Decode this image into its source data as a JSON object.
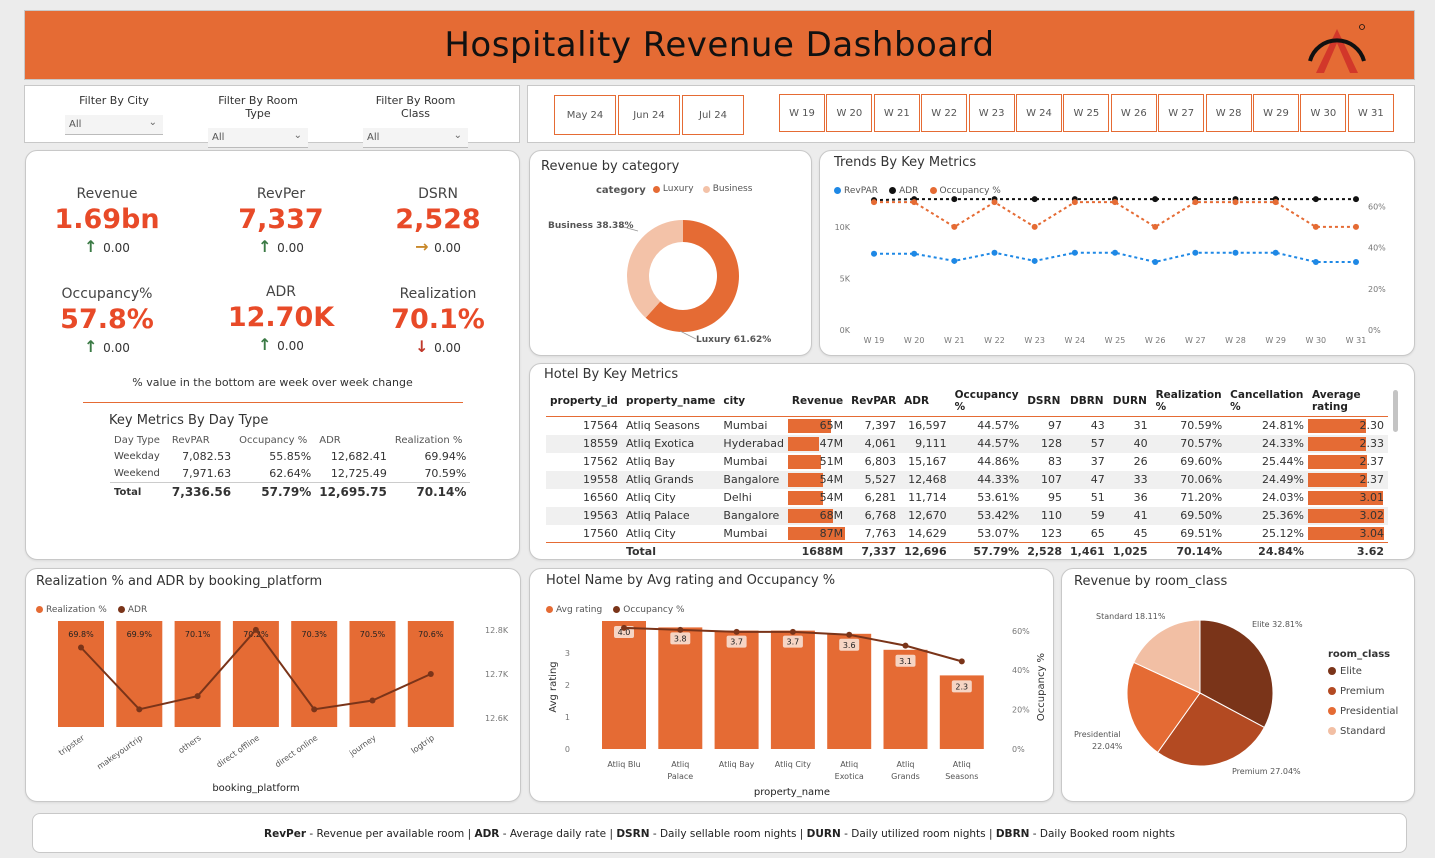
{
  "header": {
    "title": "Hospitality Revenue Dashboard"
  },
  "filters": [
    {
      "label": "Filter By City",
      "value": "All"
    },
    {
      "label": "Filter By Room Type",
      "value": "All"
    },
    {
      "label": "Filter By Room Class",
      "value": "All"
    }
  ],
  "months": [
    "May 24",
    "Jun 24",
    "Jul 24"
  ],
  "weeks": [
    "W 19",
    "W 20",
    "W 21",
    "W 22",
    "W 23",
    "W 24",
    "W 25",
    "W 26",
    "W 27",
    "W 28",
    "W 29",
    "W 30",
    "W 31"
  ],
  "kpis": [
    {
      "label": "Revenue",
      "value": "1.69bn",
      "change": "0.00",
      "dir": "up"
    },
    {
      "label": "RevPer",
      "value": "7,337",
      "change": "0.00",
      "dir": "up"
    },
    {
      "label": "DSRN",
      "value": "2,528",
      "change": "0.00",
      "dir": "right"
    },
    {
      "label": "Occupancy%",
      "value": "57.8%",
      "change": "0.00",
      "dir": "up"
    },
    {
      "label": "ADR",
      "value": "12.70K",
      "change": "0.00",
      "dir": "up"
    },
    {
      "label": "Realization",
      "value": "70.1%",
      "change": "0.00",
      "dir": "down"
    }
  ],
  "kpi_note": "% value in the bottom are week over week change",
  "day_type": {
    "title": "Key Metrics By Day Type",
    "columns": [
      "Day Type",
      "RevPAR",
      "Occupancy %",
      "ADR",
      "Realization %"
    ],
    "rows": [
      [
        "Weekday",
        "7,082.53",
        "55.85%",
        "12,682.41",
        "69.94%"
      ],
      [
        "Weekend",
        "7,971.63",
        "62.64%",
        "12,725.49",
        "70.59%"
      ]
    ],
    "total": [
      "Total",
      "7,336.56",
      "57.79%",
      "12,695.75",
      "70.14%"
    ]
  },
  "revenue_by_category": {
    "title": "Revenue by category",
    "legend_title": "category",
    "labels": {
      "business": "Business 38.38%",
      "luxury": "Luxury 61.62%"
    }
  },
  "trends": {
    "title": "Trends By Key Metrics",
    "left_ticks": [
      "10K",
      "5K",
      "0K"
    ],
    "right_ticks": [
      "60%",
      "40%",
      "20%",
      "0%"
    ]
  },
  "hotel_metrics": {
    "title": "Hotel By Key Metrics",
    "columns": [
      "property_id",
      "property_name",
      "city",
      "Revenue",
      "RevPAR",
      "ADR",
      "Occupancy %",
      "DSRN",
      "DBRN",
      "DURN",
      "Realization %",
      "Cancellation %",
      "Average rating"
    ],
    "rows": [
      {
        "id": "17564",
        "name": "Atliq Seasons",
        "city": "Mumbai",
        "revenue": "65M",
        "revenue_val": 65,
        "revpar": "7,397",
        "adr": "16,597",
        "occ": "44.57%",
        "dsrn": "97",
        "dbrn": "43",
        "durn": "31",
        "real": "70.59%",
        "canc": "24.81%",
        "rating": "2.30",
        "rating_val": 2.3
      },
      {
        "id": "18559",
        "name": "Atliq Exotica",
        "city": "Hyderabad",
        "revenue": "47M",
        "revenue_val": 47,
        "revpar": "4,061",
        "adr": "9,111",
        "occ": "44.57%",
        "dsrn": "128",
        "dbrn": "57",
        "durn": "40",
        "real": "70.57%",
        "canc": "24.33%",
        "rating": "2.33",
        "rating_val": 2.33
      },
      {
        "id": "17562",
        "name": "Atliq Bay",
        "city": "Mumbai",
        "revenue": "51M",
        "revenue_val": 51,
        "revpar": "6,803",
        "adr": "15,167",
        "occ": "44.86%",
        "dsrn": "83",
        "dbrn": "37",
        "durn": "26",
        "real": "69.60%",
        "canc": "25.44%",
        "rating": "2.37",
        "rating_val": 2.37
      },
      {
        "id": "19558",
        "name": "Atliq Grands",
        "city": "Bangalore",
        "revenue": "54M",
        "revenue_val": 54,
        "revpar": "5,527",
        "adr": "12,468",
        "occ": "44.33%",
        "dsrn": "107",
        "dbrn": "47",
        "durn": "33",
        "real": "70.06%",
        "canc": "24.49%",
        "rating": "2.37",
        "rating_val": 2.37
      },
      {
        "id": "16560",
        "name": "Atliq City",
        "city": "Delhi",
        "revenue": "54M",
        "revenue_val": 54,
        "revpar": "6,281",
        "adr": "11,714",
        "occ": "53.61%",
        "dsrn": "95",
        "dbrn": "51",
        "durn": "36",
        "real": "71.20%",
        "canc": "24.03%",
        "rating": "3.01",
        "rating_val": 3.01
      },
      {
        "id": "19563",
        "name": "Atliq Palace",
        "city": "Bangalore",
        "revenue": "68M",
        "revenue_val": 68,
        "revpar": "6,768",
        "adr": "12,670",
        "occ": "53.42%",
        "dsrn": "110",
        "dbrn": "59",
        "durn": "41",
        "real": "69.50%",
        "canc": "25.36%",
        "rating": "3.02",
        "rating_val": 3.02
      },
      {
        "id": "17560",
        "name": "Atliq City",
        "city": "Mumbai",
        "revenue": "87M",
        "revenue_val": 87,
        "revpar": "7,763",
        "adr": "14,629",
        "occ": "53.07%",
        "dsrn": "123",
        "dbrn": "65",
        "durn": "45",
        "real": "69.51%",
        "canc": "25.12%",
        "rating": "3.04",
        "rating_val": 3.04
      }
    ],
    "total": {
      "label": "Total",
      "revenue": "1688M",
      "revpar": "7,337",
      "adr": "12,696",
      "occ": "57.79%",
      "dsrn": "2,528",
      "dbrn": "1,461",
      "durn": "1,025",
      "real": "70.14%",
      "canc": "24.84%",
      "rating": "3.62"
    }
  },
  "realization_platform": {
    "title": "Realization % and ADR by booking_platform",
    "xlabel": "booking_platform",
    "right_ticks": [
      "12.8K",
      "12.7K",
      "12.6K"
    ]
  },
  "hotel_rating": {
    "title": "Hotel Name by Avg rating and Occupancy %",
    "xlabel": "property_name",
    "ylabel": "Avg rating",
    "y2label": "Occupancy %",
    "left_ticks": [
      "3",
      "2",
      "1",
      "0"
    ],
    "right_ticks": [
      "60%",
      "40%",
      "20%",
      "0%"
    ]
  },
  "room_class": {
    "title": "Revenue by room_class",
    "legend_title": "room_class"
  },
  "footer": {
    "parts": [
      {
        "bold": "RevPer",
        "text": " - Revenue per available room | "
      },
      {
        "bold": "ADR",
        "text": " - Average daily rate | "
      },
      {
        "bold": "DSRN",
        "text": " - Daily sellable room nights | "
      },
      {
        "bold": "DURN",
        "text": " - Daily utilized room nights | "
      },
      {
        "bold": "DBRN",
        "text": " - Daily Booked room nights"
      }
    ]
  },
  "colors": {
    "accent": "#e56b34",
    "kpi_red": "#e84a28",
    "luxury": "#e56b34",
    "business": "#f3c2a8",
    "revpar": "#1e88e5",
    "adr": "#111111",
    "elite": "#7a3419",
    "premium": "#b34a22",
    "presidential": "#e56b34",
    "standard": "#f2bfa4"
  },
  "chart_data": [
    {
      "type": "pie",
      "title": "Revenue by category",
      "labels": [
        "Luxury",
        "Business"
      ],
      "values": [
        61.62,
        38.38
      ],
      "legend": "top"
    },
    {
      "type": "line",
      "title": "Trends By Key Metrics",
      "x": [
        "W 19",
        "W 20",
        "W 21",
        "W 22",
        "W 23",
        "W 24",
        "W 25",
        "W 26",
        "W 27",
        "W 28",
        "W 29",
        "W 30",
        "W 31"
      ],
      "series": [
        {
          "name": "RevPAR",
          "axis": "left",
          "values": [
            7400,
            7400,
            6700,
            7500,
            6700,
            7500,
            7500,
            6600,
            7500,
            7500,
            7500,
            6600,
            6600
          ]
        },
        {
          "name": "ADR",
          "axis": "left",
          "values": [
            12600,
            12700,
            12700,
            12700,
            12700,
            12700,
            12700,
            12700,
            12700,
            12700,
            12700,
            12700,
            12700
          ]
        },
        {
          "name": "Occupancy %",
          "axis": "right",
          "values": [
            62,
            62,
            50,
            62,
            50,
            62,
            62,
            50,
            62,
            62,
            62,
            50,
            50
          ]
        }
      ],
      "ylim_left": [
        0,
        13000
      ],
      "ylim_right": [
        0,
        65
      ]
    },
    {
      "type": "bar",
      "title": "Realization % and ADR by booking_platform",
      "categories": [
        "tripster",
        "makeyourtrip",
        "others",
        "direct offline",
        "direct online",
        "journey",
        "logtrip"
      ],
      "series": [
        {
          "name": "Realization %",
          "values": [
            69.8,
            69.9,
            70.1,
            70.2,
            70.3,
            70.5,
            70.6
          ]
        },
        {
          "name": "ADR",
          "axis": "right",
          "values": [
            12760,
            12620,
            12650,
            12800,
            12620,
            12640,
            12700
          ]
        }
      ],
      "ylim_right": [
        12580,
        12820
      ]
    },
    {
      "type": "bar",
      "title": "Hotel Name by Avg rating and Occupancy %",
      "categories": [
        "Atliq Blu",
        "Atliq Palace",
        "Atliq Bay",
        "Atliq City",
        "Atliq Exotica",
        "Atliq Grands",
        "Atliq Seasons"
      ],
      "series": [
        {
          "name": "Avg rating",
          "values": [
            4.0,
            3.8,
            3.7,
            3.7,
            3.6,
            3.1,
            2.3
          ]
        },
        {
          "name": "Occupancy %",
          "axis": "right",
          "values": [
            61.5,
            60.5,
            59.5,
            59.5,
            58,
            52.5,
            44.5
          ]
        }
      ],
      "ylim": [
        0,
        4
      ],
      "ylim_right": [
        0,
        65
      ]
    },
    {
      "type": "pie",
      "title": "Revenue by room_class",
      "labels": [
        "Elite",
        "Premium",
        "Presidential",
        "Standard"
      ],
      "values": [
        32.81,
        27.04,
        22.04,
        18.11
      ],
      "value_labels": [
        "Elite 32.81%",
        "Premium 27.04%",
        "Presidential 22.04%",
        "Standard 18.11%"
      ],
      "legend": "right"
    }
  ]
}
